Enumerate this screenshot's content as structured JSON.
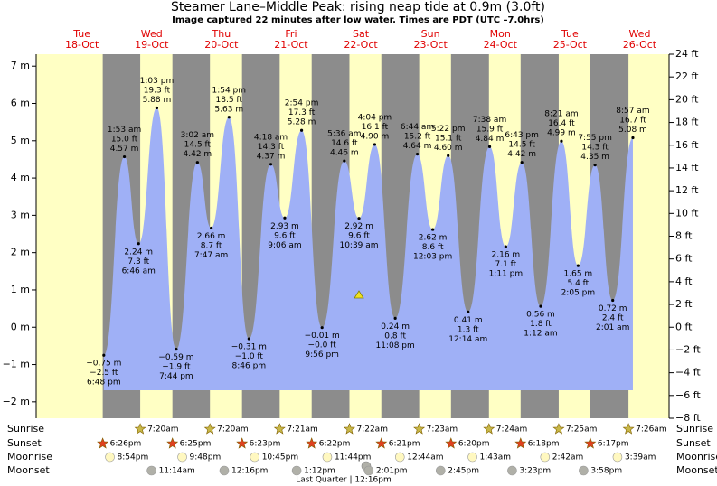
{
  "chart_data": {
    "type": "tide",
    "title": "Steamer Lane–Middle Peak: rising  neap tide at 0.9m (3.0ft)",
    "subtitle": "Image captured 22 minutes after low water. Times are PDT (UTC –7.0hrs)",
    "weekdays": [
      "Tue",
      "Wed",
      "Thu",
      "Fri",
      "Sat",
      "Sun",
      "Mon",
      "Tue",
      "Wed"
    ],
    "dates": [
      "18-Oct",
      "19-Oct",
      "20-Oct",
      "21-Oct",
      "22-Oct",
      "23-Oct",
      "24-Oct",
      "25-Oct",
      "26-Oct"
    ],
    "x": [
      "6:48 pm",
      "1:53 am",
      "6:46 am",
      "1:03 pm",
      "7:44 pm",
      "3:02 am",
      "7:47 am",
      "1:54 pm",
      "8:46 pm",
      "4:18 am",
      "9:06 am",
      "2:54 pm",
      "9:56 pm",
      "5:36 am",
      "10:39 am",
      "4:04 pm",
      "11:08 pm",
      "6:44 am",
      "12:03 pm",
      "5:22 pm",
      "12:14 am",
      "7:38 am",
      "1:11 pm",
      "6:43 pm",
      "1:12 am",
      "8:21 am",
      "2:05 pm",
      "7:55 pm",
      "2:01 am",
      "8:57 am"
    ],
    "values": [
      -0.75,
      4.57,
      2.24,
      5.88,
      -0.59,
      4.42,
      2.66,
      5.63,
      -0.31,
      4.37,
      2.93,
      5.28,
      -0.01,
      4.46,
      2.92,
      4.9,
      0.24,
      4.64,
      2.62,
      4.6,
      0.41,
      4.84,
      2.16,
      4.42,
      0.56,
      4.99,
      1.65,
      4.35,
      0.72,
      5.08
    ],
    "value_labels": [
      "−0.75 m",
      "4.57 m",
      "2.24 m",
      "5.88 m",
      "−0.59 m",
      "4.42 m",
      "2.66 m",
      "5.63 m",
      "−0.31 m",
      "4.37 m",
      "2.93 m",
      "5.28 m",
      "−0.01 m",
      "4.46 m",
      "2.92 m",
      "4.90 m",
      "0.24 m",
      "4.64 m",
      "2.62 m",
      "4.60 m",
      "0.41 m",
      "4.84 m",
      "2.16 m",
      "4.42 m",
      "0.56 m",
      "4.99 m",
      "1.65 m",
      "4.35 m",
      "0.72 m",
      "5.08 m"
    ],
    "ft_labels": [
      "−2.5 ft",
      "15.0 ft",
      "7.3 ft",
      "19.3 ft",
      "−1.9 ft",
      "14.5 ft",
      "8.7 ft",
      "18.5 ft",
      "−1.0 ft",
      "14.3 ft",
      "9.6 ft",
      "17.3 ft",
      "−0.0 ft",
      "14.6 ft",
      "9.6 ft",
      "16.1 ft",
      "0.8 ft",
      "15.2 ft",
      "8.6 ft",
      "15.1 ft",
      "1.3 ft",
      "15.9 ft",
      "7.1 ft",
      "14.5 ft",
      "1.8 ft",
      "16.4 ft",
      "5.4 ft",
      "14.3 ft",
      "2.4 ft",
      "16.7 ft"
    ],
    "color": "#9fb0f6",
    "ylim": [
      -2.44,
      7.32
    ],
    "yticks": [
      {
        "value": -2,
        "label": "−2 m"
      },
      {
        "value": -1,
        "label": "−1 m"
      },
      {
        "value": 0,
        "label": "0 m"
      },
      {
        "value": 1,
        "label": "1 m"
      },
      {
        "value": 2,
        "label": "2 m"
      },
      {
        "value": 3,
        "label": "3 m"
      },
      {
        "value": 4,
        "label": "4 m"
      },
      {
        "value": 5,
        "label": "5 m"
      },
      {
        "value": 6,
        "label": "6 m"
      },
      {
        "value": 7,
        "label": "7 m"
      }
    ],
    "y2lim": [
      -8,
      24
    ],
    "y2ticks": [
      {
        "value": -8,
        "label": "−8 ft"
      },
      {
        "value": -6,
        "label": "−6 ft"
      },
      {
        "value": -4,
        "label": "−4 ft"
      },
      {
        "value": -2,
        "label": "−2 ft"
      },
      {
        "value": 0,
        "label": "0 ft"
      },
      {
        "value": 2,
        "label": "2 ft"
      },
      {
        "value": 4,
        "label": "4 ft"
      },
      {
        "value": 6,
        "label": "6 ft"
      },
      {
        "value": 8,
        "label": "8 ft"
      },
      {
        "value": 10,
        "label": "10 ft"
      },
      {
        "value": 12,
        "label": "12 ft"
      },
      {
        "value": 14,
        "label": "14 ft"
      },
      {
        "value": 16,
        "label": "16 ft"
      },
      {
        "value": 18,
        "label": "18 ft"
      },
      {
        "value": 20,
        "label": "20 ft"
      },
      {
        "value": 22,
        "label": "22 ft"
      },
      {
        "value": 24,
        "label": "24 ft"
      }
    ],
    "astro": [
      {
        "name": "Sunrise",
        "marker": "star",
        "color": "#c8b848",
        "times": [
          null,
          "7:20am",
          "7:20am",
          "7:21am",
          "7:22am",
          "7:23am",
          "7:24am",
          "7:25am",
          "7:26am"
        ]
      },
      {
        "name": "Sunset",
        "marker": "star",
        "color": "#e04020",
        "times": [
          "6:26pm",
          "6:25pm",
          "6:23pm",
          "6:22pm",
          "6:21pm",
          "6:20pm",
          "6:18pm",
          "6:17pm",
          null
        ]
      },
      {
        "name": "Moonrise",
        "marker": "circle",
        "color": "#fff8c0",
        "times": [
          "8:54pm",
          "9:48pm",
          "10:45pm",
          "11:44pm",
          null,
          "12:44am",
          "1:43am",
          "2:42am",
          "3:39am"
        ]
      },
      {
        "name": "Moonset",
        "marker": "circle",
        "color": "#b0b0a8",
        "times": [
          null,
          "11:14am",
          "12:16pm",
          "1:12pm",
          "2:01pm",
          "2:45pm",
          "3:23pm",
          "3:58pm",
          null
        ]
      }
    ],
    "moon_phase": "Last Quarter | 12:16pm"
  }
}
